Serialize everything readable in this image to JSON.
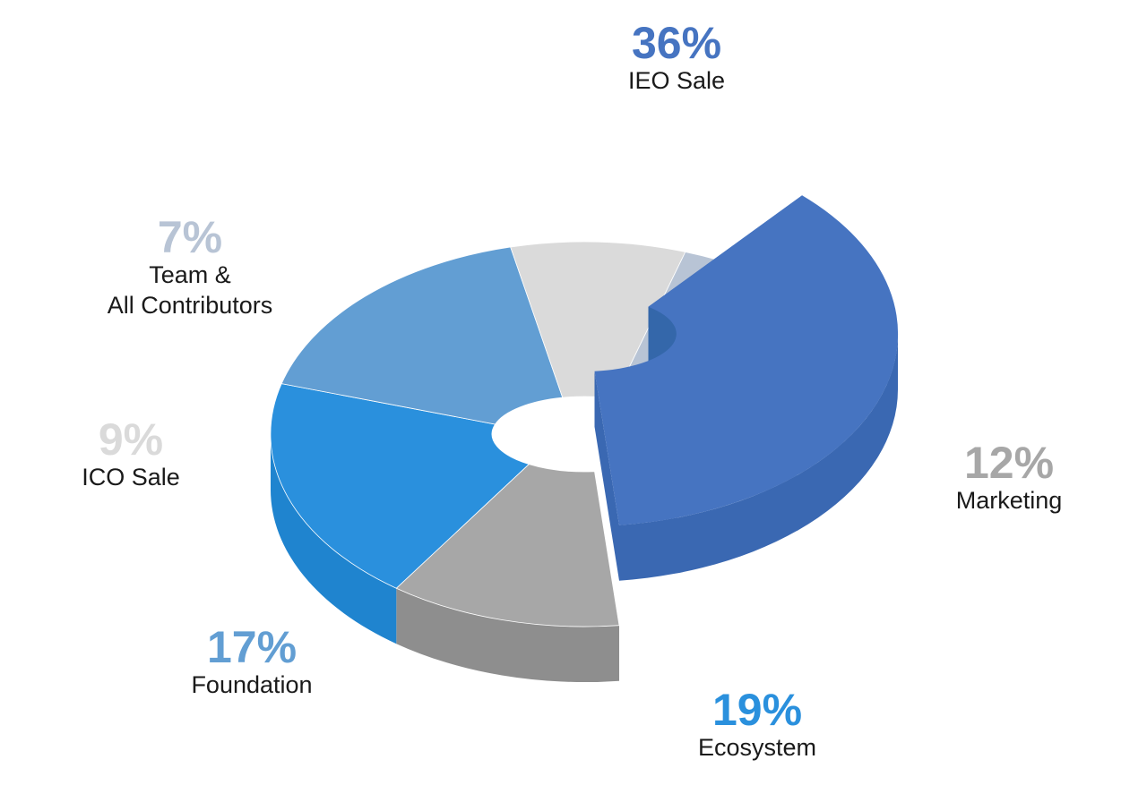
{
  "chart_data": {
    "type": "pie",
    "style": "3d-donut",
    "title": "",
    "unit": "%",
    "slices": [
      {
        "pct_text": "36%",
        "value": 36,
        "label_lines": [
          "IEO Sale"
        ],
        "color": "#4674C1",
        "side_color": "#3A68B2",
        "label_color": "#4674C1",
        "exploded": true
      },
      {
        "pct_text": "12%",
        "value": 12,
        "label_lines": [
          "Marketing"
        ],
        "color": "#A7A7A7",
        "side_color": "#8E8E8E",
        "label_color": "#A7A7A7",
        "exploded": false
      },
      {
        "pct_text": "19%",
        "value": 19,
        "label_lines": [
          "Ecosystem"
        ],
        "color": "#2A90DD",
        "side_color": "#1F84CF",
        "label_color": "#2A90DD",
        "exploded": false
      },
      {
        "pct_text": "17%",
        "value": 17,
        "label_lines": [
          "Foundation"
        ],
        "color": "#629ED3",
        "side_color": "#4A8BC2",
        "label_color": "#629ED3",
        "exploded": false
      },
      {
        "pct_text": "9%",
        "value": 9,
        "label_lines": [
          "ICO Sale"
        ],
        "color": "#DADADA",
        "side_color": "#C2C2C2",
        "label_color": "#DADADA",
        "exploded": false
      },
      {
        "pct_text": "7%",
        "value": 7,
        "label_lines": [
          "Team &",
          "All Contributors"
        ],
        "color": "#B8C4D5",
        "side_color": "#A2AFC2",
        "label_color": "#B8C4D5",
        "exploded": false
      }
    ]
  }
}
